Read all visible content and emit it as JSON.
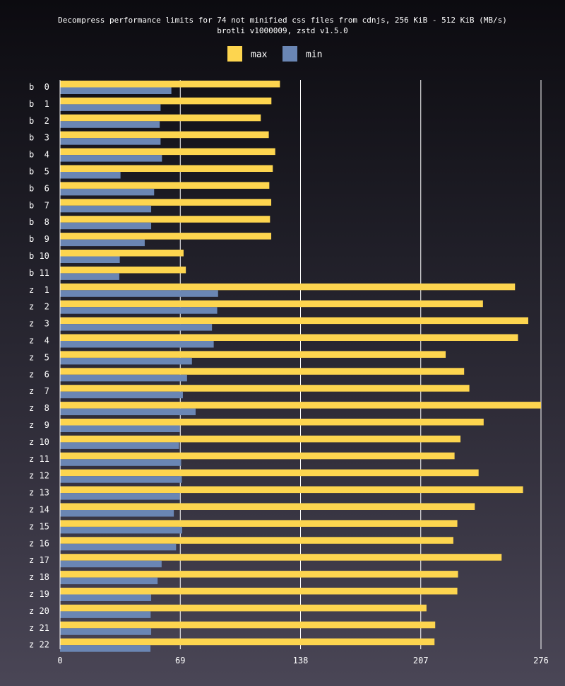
{
  "chart_data": {
    "type": "bar",
    "orientation": "horizontal",
    "title": "Decompress performance limits for 74 not minified css files from cdnjs, 256 KiB - 512 KiB (MB/s)",
    "subtitle": "brotli v1000009, zstd v1.5.0",
    "xlabel": "",
    "ylabel": "",
    "xlim": [
      0,
      276
    ],
    "xticks": [
      "0",
      "69",
      "138",
      "207",
      "276"
    ],
    "grid": "vertical",
    "legend_position": "top-center",
    "categories": [
      "b  0",
      "b  1",
      "b  2",
      "b  3",
      "b  4",
      "b  5",
      "b  6",
      "b  7",
      "b  8",
      "b  9",
      "b 10",
      "b 11",
      "z  1",
      "z  2",
      "z  3",
      "z  4",
      "z  5",
      "z  6",
      "z  7",
      "z  8",
      "z  9",
      "z 10",
      "z 11",
      "z 12",
      "z 13",
      "z 14",
      "z 15",
      "z 16",
      "z 17",
      "z 18",
      "z 19",
      "z 20",
      "z 21",
      "z 22"
    ],
    "series": [
      {
        "name": "max",
        "color": "#fdd54f",
        "values": [
          126.2,
          121.3,
          115.2,
          119.8,
          123.5,
          122.1,
          120.1,
          121.2,
          120.5,
          121.2,
          70.9,
          72.2,
          261.1,
          242.7,
          268.7,
          262.8,
          221.3,
          231.9,
          234.9,
          276.0,
          243.1,
          229.8,
          226.4,
          240.2,
          265.7,
          238.0,
          228.0,
          225.7,
          253.4,
          228.4,
          228.0,
          210.3,
          215.3,
          214.9
        ]
      },
      {
        "name": "min",
        "color": "#6a86b4",
        "values": [
          63.9,
          57.7,
          57.2,
          57.7,
          58.5,
          34.7,
          54.0,
          52.3,
          52.3,
          48.6,
          34.3,
          34.0,
          90.7,
          90.2,
          87.2,
          88.2,
          75.7,
          72.9,
          70.5,
          77.8,
          68.7,
          68.3,
          69.5,
          69.9,
          68.7,
          65.3,
          70.1,
          66.6,
          58.3,
          56.0,
          52.3,
          52.0,
          52.3,
          51.9
        ]
      }
    ]
  },
  "colors": {
    "max": "#fdd54f",
    "min": "#6a86b4",
    "grid": "#ffffff",
    "text": "#ffffff"
  }
}
